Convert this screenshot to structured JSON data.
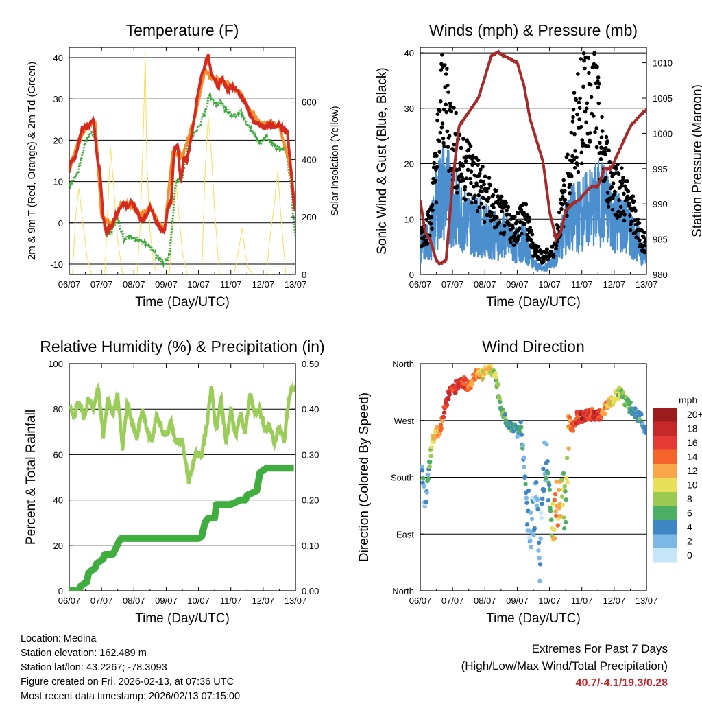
{
  "chart_data": [
    {
      "type": "line",
      "title": "Temperature (F)",
      "xlabel": "Time (Day/UTC)",
      "ylabel": "2m & 9m T (Red, Orange) & 2m Td (Green)",
      "y2label": "Solar Insolation (Yellow)",
      "x_ticks": [
        "06/07",
        "07/07",
        "08/07",
        "09/07",
        "10/07",
        "11/07",
        "12/07",
        "13/07"
      ],
      "ylim": [
        -12.5,
        42.5
      ],
      "y_ticks": [
        -10,
        0,
        10,
        20,
        30,
        40
      ],
      "y2lim": [
        0,
        790
      ],
      "y2_ticks": [
        0,
        200,
        400,
        600
      ],
      "x_range_days": [
        0,
        7
      ],
      "series": [
        {
          "name": "2m T",
          "color": "#d62a1e",
          "x": [
            0,
            0.05,
            0.2,
            0.3,
            0.4,
            0.55,
            0.65,
            0.75,
            0.85,
            0.95,
            1.05,
            1.15,
            1.3,
            1.45,
            1.6,
            1.7,
            1.8,
            1.9,
            2.0,
            2.1,
            2.2,
            2.35,
            2.5,
            2.65,
            2.8,
            2.9,
            2.95,
            3.05,
            3.15,
            3.25,
            3.35,
            3.45,
            3.55,
            3.65,
            3.8,
            3.9,
            4.0,
            4.1,
            4.2,
            4.3,
            4.4,
            4.5,
            4.6,
            4.7,
            4.8,
            4.9,
            5.0,
            5.1,
            5.2,
            5.3,
            5.45,
            5.6,
            5.75,
            5.9,
            6.05,
            6.2,
            6.35,
            6.5,
            6.6,
            6.75,
            6.85,
            6.95,
            7.0
          ],
          "y": [
            12,
            15,
            16,
            20,
            23,
            23,
            24,
            25,
            17,
            12,
            1,
            -2,
            -1,
            2,
            4,
            5,
            4,
            5,
            4,
            3,
            1,
            1,
            4,
            1,
            -1,
            -2,
            -2,
            4,
            5,
            18,
            19,
            10,
            16,
            15,
            22,
            27,
            32,
            36,
            38,
            40.5,
            36,
            35,
            33,
            35,
            34,
            32,
            33,
            33,
            32,
            31,
            29,
            26,
            24,
            24,
            23,
            24,
            23,
            24,
            23,
            22,
            14,
            5,
            3
          ]
        },
        {
          "name": "9m T",
          "color": "#f28e2b",
          "x": [
            0,
            0.3,
            0.6,
            0.8,
            1.0,
            1.3,
            1.6,
            1.9,
            2.2,
            2.5,
            2.8,
            2.95,
            3.2,
            3.5,
            3.9,
            4.2,
            4.4,
            4.7,
            5.0,
            5.3,
            5.6,
            5.9,
            6.2,
            6.5,
            6.8,
            7.0
          ],
          "y": [
            13,
            20,
            24,
            24.5,
            1.5,
            -0.5,
            4.5,
            4.5,
            1.5,
            4,
            -0.5,
            -1.5,
            17,
            16,
            26,
            37,
            35,
            34.5,
            33,
            31.5,
            27,
            24,
            24,
            23.5,
            15,
            3.5
          ]
        },
        {
          "name": "2m Td",
          "color": "#3cab3c",
          "x": [
            0,
            0.1,
            0.3,
            0.5,
            0.7,
            0.85,
            1.0,
            1.15,
            1.3,
            1.5,
            1.7,
            1.85,
            2.0,
            2.15,
            2.3,
            2.5,
            2.7,
            2.85,
            2.95,
            3.1,
            3.3,
            3.5,
            3.7,
            3.9,
            4.0,
            4.2,
            4.35,
            4.5,
            4.7,
            4.9,
            5.1,
            5.3,
            5.5,
            5.7,
            5.9,
            6.1,
            6.3,
            6.5,
            6.7,
            6.85,
            6.95,
            7.0
          ],
          "y": [
            9,
            10,
            13,
            20,
            22,
            20,
            3,
            -3,
            -2,
            1,
            -4,
            -3,
            -4,
            -4,
            -5,
            -6,
            -8,
            -9,
            -10,
            -8,
            10,
            11,
            20,
            22,
            23,
            27,
            31,
            29,
            29,
            27,
            26,
            27,
            24,
            22,
            19,
            21,
            19,
            18,
            18,
            10,
            0,
            -3
          ]
        },
        {
          "name": "Solar Insolation",
          "color": "#f6df5c",
          "axis": "y2",
          "x": [
            0,
            0.1,
            0.2,
            0.3,
            0.42,
            0.55,
            0.7,
            1.1,
            1.2,
            1.28,
            1.38,
            1.5,
            1.65,
            2.1,
            2.2,
            2.3,
            2.35,
            2.4,
            2.5,
            2.6,
            2.7,
            3.1,
            3.2,
            3.3,
            3.4,
            3.5,
            3.65,
            4.1,
            4.2,
            4.3,
            4.4,
            4.5,
            4.65,
            5.1,
            5.2,
            5.35,
            5.45,
            5.55,
            5.7,
            6.1,
            6.2,
            6.35,
            6.45,
            6.55,
            6.7,
            7.0
          ],
          "y": [
            0,
            0,
            200,
            300,
            180,
            60,
            0,
            0,
            250,
            440,
            300,
            120,
            0,
            0,
            180,
            520,
            780,
            400,
            150,
            50,
            0,
            0,
            200,
            330,
            200,
            80,
            0,
            0,
            350,
            550,
            420,
            220,
            0,
            0,
            60,
            160,
            70,
            20,
            0,
            0,
            120,
            250,
            360,
            200,
            0,
            0
          ]
        }
      ]
    },
    {
      "type": "scatter",
      "title": "Winds (mph) & Pressure (mb)",
      "xlabel": "Time (Day/UTC)",
      "ylabel": "Sonic Wind & Gust (Blue, Black)",
      "y2label": "Station Pressure (Maroon)",
      "x_ticks": [
        "06/07",
        "07/07",
        "08/07",
        "09/07",
        "10/07",
        "11/07",
        "12/07",
        "13/07"
      ],
      "ylim": [
        0,
        41
      ],
      "y_ticks": [
        0,
        10,
        20,
        30,
        40
      ],
      "y2lim": [
        980,
        1012.2
      ],
      "y2_ticks": [
        980,
        985,
        990,
        995,
        1000,
        1005,
        1010
      ],
      "x_range_days": [
        0,
        7
      ],
      "series": [
        {
          "name": "Wind",
          "color": "#4b8fcf",
          "x": [
            0,
            0.3,
            0.5,
            0.7,
            0.9,
            1.1,
            1.4,
            1.7,
            2.0,
            2.3,
            2.6,
            2.9,
            3.2,
            3.5,
            3.8,
            4.1,
            4.4,
            4.7,
            5.0,
            5.3,
            5.6,
            5.9,
            6.2,
            6.5,
            6.8,
            7.0
          ],
          "y": [
            5,
            6,
            12,
            15,
            14,
            12,
            10,
            9,
            8,
            7,
            7,
            5,
            6,
            2,
            1,
            2,
            7,
            10,
            11,
            12,
            13,
            11,
            9,
            8,
            5,
            3
          ]
        },
        {
          "name": "Gust",
          "color": "#000000",
          "x": [
            0,
            0.3,
            0.5,
            0.65,
            0.75,
            0.9,
            1.1,
            1.4,
            1.7,
            2.0,
            2.3,
            2.6,
            2.9,
            3.2,
            3.5,
            3.8,
            4.1,
            4.4,
            4.6,
            4.8,
            5.0,
            5.15,
            5.3,
            5.45,
            5.6,
            5.9,
            6.2,
            6.5,
            6.8,
            7.0
          ],
          "y": [
            7,
            9,
            20,
            30,
            34,
            27,
            22,
            20,
            17,
            14,
            12,
            10,
            8,
            11,
            5,
            3,
            4,
            12,
            18,
            26,
            30,
            34,
            37,
            30,
            22,
            17,
            15,
            12,
            7,
            5
          ]
        },
        {
          "name": "Pressure",
          "color": "#a52a2a",
          "axis": "y2",
          "x": [
            0,
            0.15,
            0.3,
            0.5,
            0.6,
            0.8,
            1.0,
            1.2,
            1.5,
            1.8,
            2.0,
            2.2,
            2.4,
            2.6,
            2.8,
            3.0,
            3.2,
            3.4,
            3.6,
            3.8,
            4.0,
            4.2,
            4.35,
            4.5,
            4.7,
            4.9,
            5.1,
            5.3,
            5.5,
            5.7,
            5.9,
            6.1,
            6.3,
            6.5,
            6.7,
            6.9,
            7.0
          ],
          "y": [
            990.5,
            986,
            985,
            982,
            981.5,
            982,
            993,
            1001,
            1003,
            1005,
            1008,
            1011,
            1011.5,
            1011,
            1010.5,
            1010,
            1007,
            1002,
            999,
            996,
            989,
            985,
            986,
            989,
            990,
            990.5,
            991.5,
            992.5,
            992.5,
            995,
            995,
            997,
            999,
            1001,
            1002,
            1003,
            1003.3
          ]
        }
      ]
    },
    {
      "type": "line",
      "title": "Relative Humidity (%) & Precipitation (in)",
      "xlabel": "Time (Day/UTC)",
      "ylabel": "Percent & Total Rainfall",
      "x_ticks": [
        "06/07",
        "07/07",
        "08/07",
        "09/07",
        "10/07",
        "11/07",
        "12/07",
        "13/07"
      ],
      "ylim": [
        0,
        100
      ],
      "y_ticks": [
        0,
        20,
        40,
        60,
        80,
        100
      ],
      "y2lim": [
        0,
        0.5
      ],
      "y2_ticks": [
        "0.00",
        "0.10",
        "0.20",
        "0.30",
        "0.40",
        "0.50"
      ],
      "x_range_days": [
        0,
        7
      ],
      "series": [
        {
          "name": "Relative Humidity",
          "color": "#9acd5a",
          "x": [
            0,
            0.15,
            0.3,
            0.45,
            0.6,
            0.75,
            0.9,
            1.05,
            1.2,
            1.35,
            1.5,
            1.65,
            1.8,
            1.95,
            2.1,
            2.25,
            2.4,
            2.55,
            2.7,
            2.85,
            3.0,
            3.15,
            3.3,
            3.5,
            3.7,
            3.9,
            4.1,
            4.25,
            4.4,
            4.55,
            4.7,
            4.85,
            5.0,
            5.15,
            5.3,
            5.45,
            5.6,
            5.75,
            5.9,
            6.05,
            6.2,
            6.35,
            6.5,
            6.65,
            6.8,
            6.9,
            7.0
          ],
          "y": [
            82,
            76,
            84,
            76,
            85,
            80,
            89,
            68,
            85,
            78,
            87,
            62,
            84,
            74,
            68,
            80,
            72,
            65,
            78,
            71,
            68,
            74,
            65,
            66,
            48,
            60,
            60,
            72,
            90,
            70,
            85,
            65,
            80,
            68,
            78,
            70,
            87,
            78,
            80,
            70,
            73,
            65,
            72,
            66,
            85,
            90,
            88
          ]
        },
        {
          "name": "Total Precipitation",
          "color": "#3fae3f",
          "axis": "y2",
          "x": [
            0,
            0.3,
            0.35,
            0.55,
            0.6,
            0.8,
            0.85,
            1.05,
            1.1,
            1.35,
            1.55,
            1.6,
            2.0,
            2.5,
            3.0,
            3.5,
            4.0,
            4.1,
            4.2,
            4.3,
            4.5,
            4.55,
            5.0,
            5.3,
            5.45,
            5.5,
            5.8,
            5.9,
            6.1,
            6.5,
            6.95
          ],
          "y": [
            0,
            0,
            0.01,
            0.02,
            0.04,
            0.05,
            0.06,
            0.07,
            0.08,
            0.08,
            0.11,
            0.115,
            0.115,
            0.115,
            0.115,
            0.115,
            0.115,
            0.12,
            0.15,
            0.16,
            0.16,
            0.19,
            0.19,
            0.2,
            0.2,
            0.21,
            0.22,
            0.26,
            0.27,
            0.27,
            0.27
          ]
        }
      ]
    },
    {
      "type": "scatter",
      "title": "Wind Direction",
      "xlabel": "Time (Day/UTC)",
      "ylabel": "Direction (Colored By Speed)",
      "x_ticks": [
        "06/07",
        "07/07",
        "08/07",
        "09/07",
        "10/07",
        "11/07",
        "12/07",
        "13/07"
      ],
      "y_ticks": [
        "North",
        "East",
        "South",
        "West",
        "North"
      ],
      "ylim_degrees": [
        0,
        360
      ],
      "x_range_days": [
        0,
        7
      ],
      "colorbar": {
        "label": "mph",
        "levels": [
          "20+",
          "18",
          "16",
          "14",
          "12",
          "10",
          "8",
          "6",
          "4",
          "2",
          "0"
        ],
        "colors": [
          "#9c1c1c",
          "#c62828",
          "#e53935",
          "#f4632a",
          "#f9a649",
          "#e8df5a",
          "#9cc94f",
          "#4caf63",
          "#3f86c4",
          "#7db7e6",
          "#c4e6f8"
        ]
      },
      "series": [
        {
          "name": "Direction",
          "x": [
            0.05,
            0.1,
            0.15,
            0.22,
            0.3,
            0.4,
            0.5,
            0.6,
            0.75,
            0.9,
            1.05,
            1.2,
            1.35,
            1.5,
            1.65,
            1.8,
            1.95,
            2.1,
            2.2,
            2.3,
            2.4,
            2.55,
            2.7,
            2.85,
            3.0,
            3.1,
            3.2,
            3.3,
            3.4,
            3.5,
            3.6,
            3.7,
            3.8,
            3.9,
            4.0,
            4.1,
            4.2,
            4.3,
            4.4,
            4.5,
            4.6,
            4.7,
            4.85,
            5.0,
            5.15,
            5.3,
            5.45,
            5.6,
            5.75,
            5.9,
            6.05,
            6.2,
            6.35,
            6.5,
            6.65,
            6.8,
            6.9,
            7.0
          ],
          "y": [
            190,
            170,
            130,
            170,
            210,
            240,
            255,
            250,
            290,
            315,
            320,
            330,
            330,
            325,
            335,
            345,
            340,
            355,
            350,
            345,
            320,
            280,
            265,
            260,
            250,
            265,
            210,
            140,
            100,
            120,
            160,
            30,
            190,
            210,
            150,
            110,
            130,
            150,
            160,
            120,
            270,
            260,
            275,
            275,
            278,
            280,
            275,
            280,
            290,
            300,
            310,
            315,
            300,
            290,
            280,
            275,
            265,
            250
          ],
          "speed": [
            3,
            5,
            2,
            4,
            6,
            10,
            12,
            12,
            16,
            18,
            15,
            17,
            16,
            13,
            14,
            12,
            10,
            11,
            9,
            8,
            7,
            6,
            6,
            5,
            4,
            5,
            3,
            4,
            2,
            2,
            2,
            1,
            3,
            4,
            5,
            10,
            14,
            12,
            8,
            6,
            12,
            14,
            16,
            18,
            17,
            16,
            18,
            14,
            12,
            10,
            9,
            8,
            7,
            6,
            5,
            6,
            4,
            3
          ]
        }
      ]
    }
  ],
  "info": {
    "location": "Location: Medina",
    "elevation": "Station elevation: 162.489 m",
    "latlon": "Station lat/lon: 43.2267; -78.3093",
    "created": "Figure created on Fri, 2026-02-13, at 07:36 UTC",
    "recent": "Most recent data timestamp: 2026/02/13 07:15:00"
  },
  "extremes": {
    "title": "Extremes For Past 7 Days",
    "subtitle": "(High/Low/Max Wind/Total Precipitation)",
    "values": "40.7/-4.1/19.3/0.28"
  }
}
